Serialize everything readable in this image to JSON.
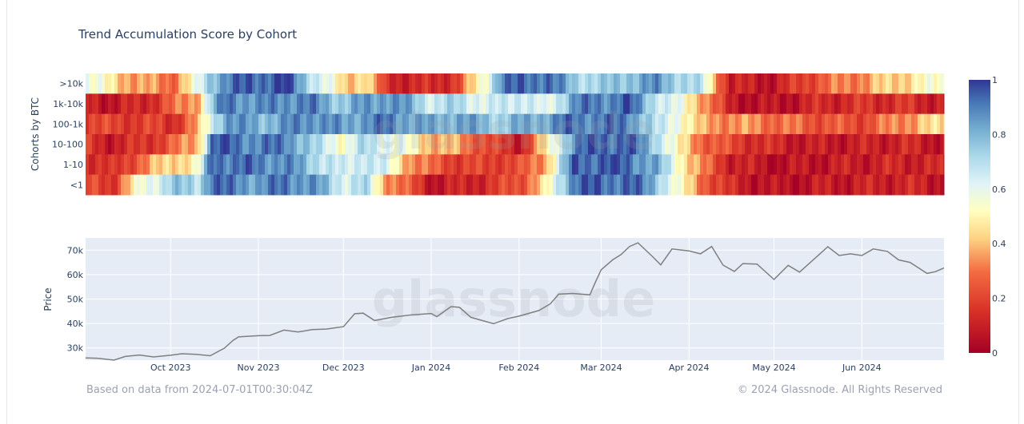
{
  "footer": {
    "left": "Based on data from 2024-07-01T00:30:04Z",
    "right": "© 2024 Glassnode. All Rights Reserved"
  },
  "watermark": "glassnode",
  "chart_data": [
    {
      "type": "heatmap",
      "title": "Trend Accumulation Score by Cohort",
      "ylabel": "Cohorts by BTC",
      "rows": [
        ">10k",
        "1k-10k",
        "100-1k",
        "10-100",
        "1-10",
        "<1"
      ],
      "colorbar": {
        "range": [
          0,
          1
        ],
        "ticks": [
          "0",
          "0.2",
          "0.4",
          "0.6",
          "0.8",
          "1"
        ]
      },
      "x_range": [
        "2023-09-01",
        "2024-06-30"
      ],
      "segments": [
        {
          "start": "2023-09-01",
          "scores": [
            0.6,
            0.12,
            0.22,
            0.15,
            0.18,
            0.2
          ]
        },
        {
          "start": "2023-09-10",
          "scores": [
            0.45,
            0.08,
            0.18,
            0.1,
            0.12,
            0.18
          ]
        },
        {
          "start": "2023-09-20",
          "scores": [
            0.35,
            0.12,
            0.2,
            0.15,
            0.3,
            0.55
          ]
        },
        {
          "start": "2023-10-01",
          "scores": [
            0.3,
            0.25,
            0.15,
            0.25,
            0.45,
            0.75
          ]
        },
        {
          "start": "2023-10-10",
          "scores": [
            0.55,
            0.4,
            0.35,
            0.4,
            0.5,
            0.7
          ]
        },
        {
          "start": "2023-10-15",
          "scores": [
            0.8,
            0.75,
            0.65,
            0.92,
            0.95,
            0.95
          ]
        },
        {
          "start": "2023-10-20",
          "scores": [
            0.9,
            0.92,
            0.88,
            0.95,
            0.93,
            0.9
          ]
        },
        {
          "start": "2023-11-01",
          "scores": [
            0.95,
            0.85,
            0.8,
            0.88,
            0.9,
            0.85
          ]
        },
        {
          "start": "2023-11-10",
          "scores": [
            0.98,
            0.9,
            0.85,
            0.92,
            0.88,
            0.92
          ]
        },
        {
          "start": "2023-11-20",
          "scores": [
            0.7,
            0.88,
            0.9,
            0.7,
            0.75,
            0.85
          ]
        },
        {
          "start": "2023-12-01",
          "scores": [
            0.4,
            0.75,
            0.82,
            0.55,
            0.6,
            0.65
          ]
        },
        {
          "start": "2023-12-08",
          "scores": [
            0.5,
            0.85,
            0.88,
            0.7,
            0.72,
            0.7
          ]
        },
        {
          "start": "2023-12-15",
          "scores": [
            0.15,
            0.88,
            0.9,
            0.65,
            0.6,
            0.4
          ]
        },
        {
          "start": "2023-12-25",
          "scores": [
            0.12,
            0.8,
            0.85,
            0.5,
            0.35,
            0.2
          ]
        },
        {
          "start": "2024-01-01",
          "scores": [
            0.12,
            0.65,
            0.8,
            0.4,
            0.25,
            0.08
          ]
        },
        {
          "start": "2024-01-10",
          "scores": [
            0.2,
            0.72,
            0.85,
            0.35,
            0.2,
            0.1
          ]
        },
        {
          "start": "2024-01-20",
          "scores": [
            0.6,
            0.6,
            0.78,
            0.22,
            0.18,
            0.15
          ]
        },
        {
          "start": "2024-01-25",
          "scores": [
            0.9,
            0.65,
            0.75,
            0.15,
            0.22,
            0.18
          ]
        },
        {
          "start": "2024-02-01",
          "scores": [
            0.92,
            0.7,
            0.8,
            0.1,
            0.2,
            0.25
          ]
        },
        {
          "start": "2024-02-10",
          "scores": [
            0.95,
            0.55,
            0.85,
            0.45,
            0.4,
            0.45
          ]
        },
        {
          "start": "2024-02-20",
          "scores": [
            0.75,
            0.88,
            0.92,
            0.9,
            0.95,
            0.95
          ]
        },
        {
          "start": "2024-03-01",
          "scores": [
            0.72,
            0.9,
            0.9,
            0.95,
            0.95,
            0.92
          ]
        },
        {
          "start": "2024-03-10",
          "scores": [
            0.8,
            0.95,
            0.92,
            0.95,
            0.94,
            0.95
          ]
        },
        {
          "start": "2024-03-20",
          "scores": [
            0.85,
            0.7,
            0.65,
            0.75,
            0.8,
            0.8
          ]
        },
        {
          "start": "2024-03-28",
          "scores": [
            0.75,
            0.55,
            0.6,
            0.45,
            0.55,
            0.5
          ]
        },
        {
          "start": "2024-04-05",
          "scores": [
            0.65,
            0.4,
            0.35,
            0.3,
            0.3,
            0.3
          ]
        },
        {
          "start": "2024-04-15",
          "scores": [
            0.1,
            0.08,
            0.35,
            0.2,
            0.12,
            0.12
          ]
        },
        {
          "start": "2024-05-01",
          "scores": [
            0.08,
            0.05,
            0.3,
            0.12,
            0.05,
            0.05
          ]
        },
        {
          "start": "2024-05-15",
          "scores": [
            0.25,
            0.12,
            0.25,
            0.08,
            0.08,
            0.08
          ]
        },
        {
          "start": "2024-06-01",
          "scores": [
            0.35,
            0.15,
            0.22,
            0.1,
            0.1,
            0.1
          ]
        },
        {
          "start": "2024-06-15",
          "scores": [
            0.45,
            0.15,
            0.35,
            0.12,
            0.12,
            0.12
          ]
        },
        {
          "start": "2024-06-30",
          "scores": [
            0.55,
            0.1,
            0.45,
            0.08,
            0.1,
            0.08
          ]
        }
      ]
    },
    {
      "type": "line",
      "ylabel": "Price",
      "xlabel": "",
      "x_ticks": [
        "Oct 2023",
        "Nov 2023",
        "Dec 2023",
        "Jan 2024",
        "Feb 2024",
        "Mar 2024",
        "Apr 2024",
        "May 2024",
        "Jun 2024"
      ],
      "y_ticks": [
        "30k",
        "40k",
        "50k",
        "60k",
        "70k"
      ],
      "ylim": [
        25000,
        75000
      ],
      "x_range": [
        "2023-09-01",
        "2024-06-30"
      ],
      "series": [
        {
          "line_color": "#7f7f7f",
          "x": [
            "2023-09-01",
            "2023-09-05",
            "2023-09-11",
            "2023-09-15",
            "2023-09-20",
            "2023-09-25",
            "2023-10-01",
            "2023-10-05",
            "2023-10-10",
            "2023-10-15",
            "2023-10-20",
            "2023-10-23",
            "2023-10-25",
            "2023-11-01",
            "2023-11-05",
            "2023-11-10",
            "2023-11-15",
            "2023-11-20",
            "2023-11-25",
            "2023-12-01",
            "2023-12-05",
            "2023-12-08",
            "2023-12-12",
            "2023-12-18",
            "2023-12-25",
            "2024-01-01",
            "2024-01-03",
            "2024-01-08",
            "2024-01-11",
            "2024-01-15",
            "2024-01-23",
            "2024-01-28",
            "2024-02-01",
            "2024-02-08",
            "2024-02-12",
            "2024-02-15",
            "2024-02-20",
            "2024-02-26",
            "2024-02-28",
            "2024-03-01",
            "2024-03-05",
            "2024-03-08",
            "2024-03-11",
            "2024-03-14",
            "2024-03-19",
            "2024-03-22",
            "2024-03-26",
            "2024-04-01",
            "2024-04-05",
            "2024-04-09",
            "2024-04-13",
            "2024-04-17",
            "2024-04-20",
            "2024-04-25",
            "2024-05-01",
            "2024-05-06",
            "2024-05-10",
            "2024-05-15",
            "2024-05-20",
            "2024-05-24",
            "2024-05-28",
            "2024-06-01",
            "2024-06-05",
            "2024-06-10",
            "2024-06-14",
            "2024-06-18",
            "2024-06-24",
            "2024-06-27",
            "2024-06-30"
          ],
          "y": [
            25900,
            25800,
            25000,
            26500,
            27100,
            26300,
            27000,
            27600,
            27400,
            26800,
            29900,
            33000,
            34500,
            35000,
            35100,
            37300,
            36500,
            37500,
            37700,
            38700,
            44000,
            44200,
            41200,
            42500,
            43500,
            44100,
            42800,
            46900,
            46600,
            42500,
            39900,
            42000,
            43000,
            45300,
            48000,
            52000,
            52300,
            51700,
            57000,
            62000,
            66000,
            68200,
            71500,
            73000,
            67500,
            64000,
            70500,
            69700,
            68500,
            71500,
            63900,
            61300,
            64500,
            64300,
            58000,
            63800,
            61000,
            66200,
            71400,
            67800,
            68500,
            67800,
            70500,
            69500,
            66000,
            65000,
            60500,
            61200,
            62700
          ]
        }
      ]
    }
  ]
}
